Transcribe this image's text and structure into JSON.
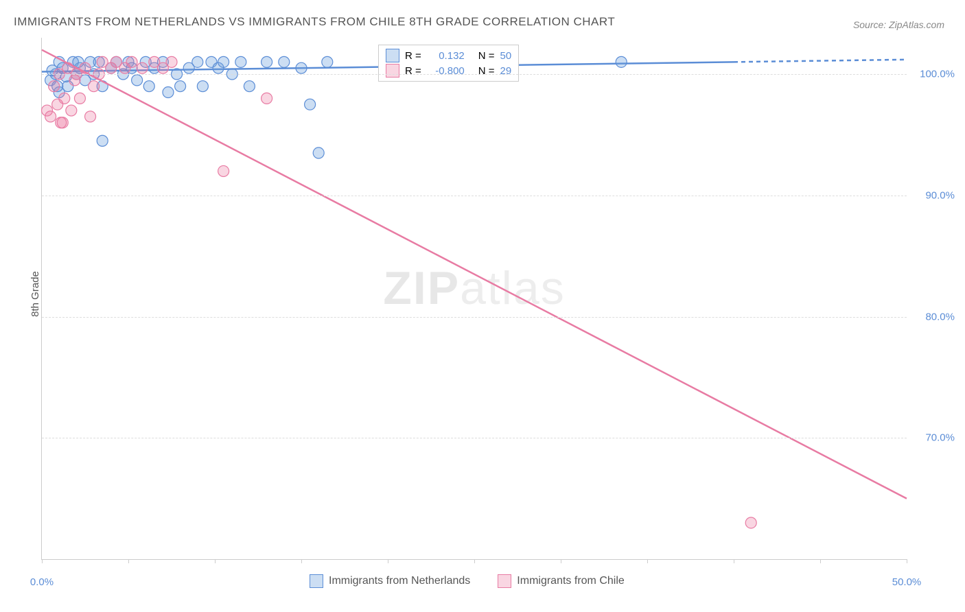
{
  "title": "IMMIGRANTS FROM NETHERLANDS VS IMMIGRANTS FROM CHILE 8TH GRADE CORRELATION CHART",
  "source": "Source: ZipAtlas.com",
  "y_axis_label": "8th Grade",
  "watermark_a": "ZIP",
  "watermark_b": "atlas",
  "chart": {
    "type": "scatter",
    "xlim": [
      0,
      50
    ],
    "ylim": [
      60,
      103
    ],
    "x_ticks": [
      0,
      5,
      10,
      15,
      20,
      25,
      30,
      35,
      40,
      45,
      50
    ],
    "x_tick_labels": {
      "0": "0.0%",
      "50": "50.0%"
    },
    "y_ticks": [
      70,
      80,
      90,
      100
    ],
    "y_tick_labels": {
      "70": "70.0%",
      "80": "80.0%",
      "90": "90.0%",
      "100": "100.0%"
    },
    "grid_color": "#dddddd",
    "background_color": "#ffffff",
    "series": [
      {
        "name": "Immigrants from Netherlands",
        "color_fill": "rgba(108,160,220,0.35)",
        "color_stroke": "#5b8dd6",
        "marker_radius": 8,
        "points": [
          [
            0.5,
            99.5
          ],
          [
            0.8,
            100
          ],
          [
            1.0,
            101
          ],
          [
            1.2,
            100.5
          ],
          [
            1.5,
            99
          ],
          [
            1.8,
            101
          ],
          [
            2.0,
            100
          ],
          [
            2.2,
            100.5
          ],
          [
            2.5,
            99.5
          ],
          [
            2.8,
            101
          ],
          [
            3.0,
            100
          ],
          [
            3.3,
            101
          ],
          [
            3.5,
            99
          ],
          [
            3.5,
            94.5
          ],
          [
            4.0,
            100.5
          ],
          [
            4.3,
            101
          ],
          [
            4.7,
            100
          ],
          [
            5.0,
            101
          ],
          [
            5.2,
            100.5
          ],
          [
            5.5,
            99.5
          ],
          [
            6.0,
            101
          ],
          [
            6.2,
            99
          ],
          [
            6.5,
            100.5
          ],
          [
            7.0,
            101
          ],
          [
            7.3,
            98.5
          ],
          [
            7.8,
            100
          ],
          [
            8.0,
            99
          ],
          [
            8.5,
            100.5
          ],
          [
            9.0,
            101
          ],
          [
            9.3,
            99
          ],
          [
            9.8,
            101
          ],
          [
            10.2,
            100.5
          ],
          [
            10.5,
            101
          ],
          [
            11.0,
            100
          ],
          [
            11.5,
            101
          ],
          [
            12.0,
            99
          ],
          [
            13.0,
            101
          ],
          [
            14.0,
            101
          ],
          [
            15.0,
            100.5
          ],
          [
            15.5,
            97.5
          ],
          [
            16.0,
            93.5
          ],
          [
            16.5,
            101
          ],
          [
            22.0,
            100.5
          ],
          [
            23.5,
            100.5
          ],
          [
            33.5,
            101
          ],
          [
            1.0,
            98.5
          ],
          [
            1.4,
            99.8
          ],
          [
            2.1,
            101
          ],
          [
            0.6,
            100.3
          ],
          [
            0.9,
            99
          ]
        ],
        "trend": {
          "x1": 0,
          "y1": 100.2,
          "x2": 40,
          "y2": 101,
          "dash_x1": 40,
          "dash_y1": 101,
          "dash_x2": 50,
          "dash_y2": 101.2
        },
        "R": "0.132",
        "N": "50"
      },
      {
        "name": "Immigrants from Chile",
        "color_fill": "rgba(235,120,160,0.30)",
        "color_stroke": "#e87ba3",
        "marker_radius": 8,
        "points": [
          [
            0.3,
            97
          ],
          [
            0.5,
            96.5
          ],
          [
            0.7,
            99
          ],
          [
            0.9,
            97.5
          ],
          [
            1.0,
            100
          ],
          [
            1.1,
            96
          ],
          [
            1.3,
            98
          ],
          [
            1.5,
            100.5
          ],
          [
            1.7,
            97
          ],
          [
            1.9,
            99.5
          ],
          [
            2.0,
            100
          ],
          [
            2.2,
            98
          ],
          [
            2.5,
            100.5
          ],
          [
            2.8,
            96.5
          ],
          [
            3.0,
            99
          ],
          [
            3.3,
            100
          ],
          [
            3.5,
            101
          ],
          [
            4.0,
            100.5
          ],
          [
            4.3,
            101
          ],
          [
            4.8,
            100.5
          ],
          [
            5.2,
            101
          ],
          [
            5.8,
            100.5
          ],
          [
            6.5,
            101
          ],
          [
            7.0,
            100.5
          ],
          [
            7.5,
            101
          ],
          [
            10.5,
            92
          ],
          [
            13.0,
            98
          ],
          [
            41.0,
            63
          ],
          [
            1.2,
            96
          ]
        ],
        "trend": {
          "x1": 0,
          "y1": 102,
          "x2": 50,
          "y2": 65
        },
        "R": "-0.800",
        "N": "29"
      }
    ],
    "legend_top": {
      "r_label": "R =",
      "n_label": "N ="
    }
  }
}
